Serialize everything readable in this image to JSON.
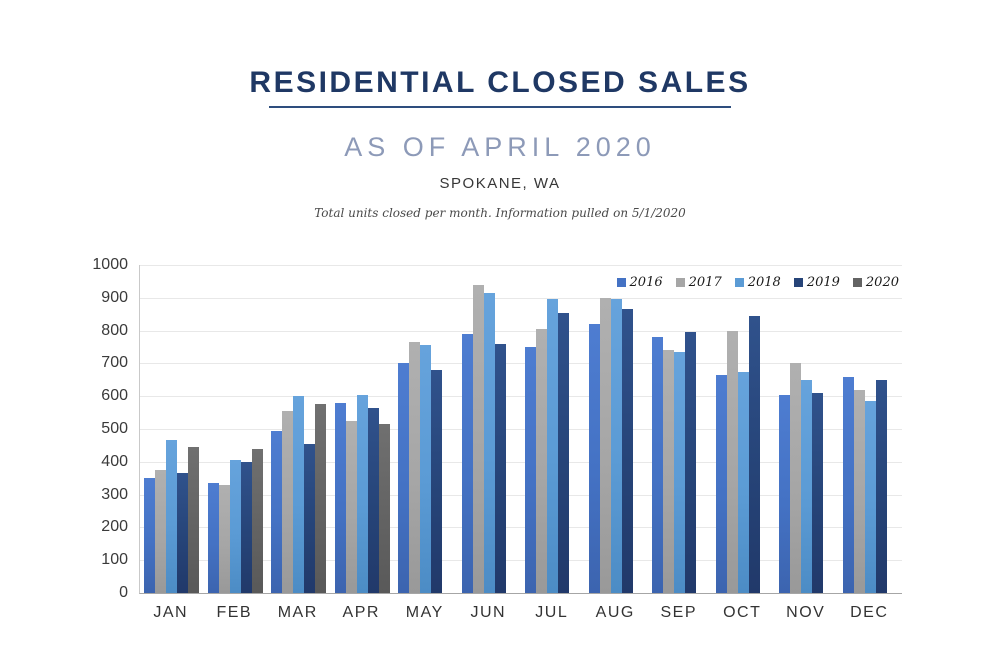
{
  "header": {
    "title": "RESIDENTIAL CLOSED SALES",
    "subtitle": "AS OF APRIL 2020",
    "location": "SPOKANE, WA",
    "note": "Total units closed per month.  Information pulled on 5/1/2020"
  },
  "colors": {
    "title_navy": "#1F3864",
    "underline": "#2E4E7E",
    "subtitle_slate": "#8D9AB8",
    "axis_line": "#A6A6A6",
    "gridline": "#E8E8E8"
  },
  "chart_data": {
    "type": "bar",
    "title": "Residential closed sales per month, Spokane WA",
    "categories": [
      "JAN",
      "FEB",
      "MAR",
      "APR",
      "MAY",
      "JUN",
      "JUL",
      "AUG",
      "SEP",
      "OCT",
      "NOV",
      "DEC"
    ],
    "series": [
      {
        "name": "2016",
        "color": "#4472C4",
        "gradient": [
          "#4E7DD1",
          "#3C64AF"
        ],
        "values": [
          350,
          335,
          495,
          580,
          700,
          790,
          750,
          820,
          780,
          665,
          605,
          660
        ]
      },
      {
        "name": "2017",
        "color": "#A6A6A6",
        "gradient": [
          "#B0B0B0",
          "#999999"
        ],
        "values": [
          375,
          330,
          555,
          525,
          765,
          940,
          805,
          900,
          740,
          800,
          700,
          620
        ]
      },
      {
        "name": "2018",
        "color": "#5B9BD5",
        "gradient": [
          "#66A3DC",
          "#4C8CC5"
        ],
        "values": [
          465,
          405,
          600,
          605,
          755,
          915,
          895,
          895,
          735,
          675,
          650,
          585
        ]
      },
      {
        "name": "2019",
        "color": "#264478",
        "gradient": [
          "#30528C",
          "#21396A"
        ],
        "values": [
          365,
          400,
          455,
          565,
          680,
          760,
          855,
          865,
          795,
          845,
          610,
          650
        ]
      },
      {
        "name": "2020",
        "color": "#636363",
        "gradient": [
          "#707070",
          "#595959"
        ],
        "values": [
          445,
          440,
          575,
          515,
          null,
          null,
          null,
          null,
          null,
          null,
          null,
          null
        ]
      }
    ],
    "ylim": [
      0,
      1000
    ],
    "ytick_step": 100,
    "grid": true,
    "legend_position": "top-right"
  }
}
